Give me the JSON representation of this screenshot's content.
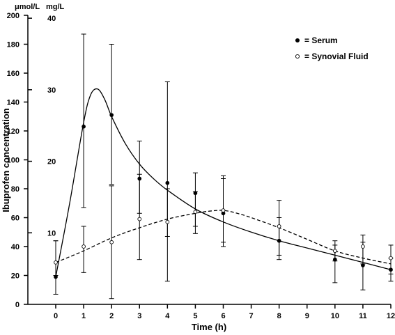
{
  "chart_data": {
    "type": "line",
    "xlabel": "Time (h)",
    "ylabel": "Ibuprofen concentration",
    "y_unit_left": "μmol/L",
    "y_unit_right": "mg/L",
    "x_ticks": [
      0,
      1,
      2,
      3,
      4,
      5,
      6,
      7,
      8,
      9,
      10,
      11,
      12
    ],
    "xlim": [
      0,
      12
    ],
    "ylim": [
      0,
      200
    ],
    "y_ticks_umol": [
      0,
      20,
      40,
      60,
      80,
      100,
      120,
      140,
      160,
      180,
      200
    ],
    "y_ticks_mgL": [
      10,
      20,
      30,
      40
    ],
    "mgL_to_umol_factor": 4.95,
    "grid": false,
    "legend_position": "top-right",
    "series": [
      {
        "name": "= Serum",
        "marker": "filled-circle",
        "line": "solid",
        "points": [
          {
            "x": 0,
            "y": 19,
            "err_low": 7,
            "err_high": 44
          },
          {
            "x": 1,
            "y": 123,
            "err_low": 67,
            "err_high": 187
          },
          {
            "x": 2,
            "y": 131,
            "err_low": 83,
            "err_high": 180
          },
          {
            "x": 3,
            "y": 87,
            "err_low": 63,
            "err_high": 113
          },
          {
            "x": 4,
            "y": 84,
            "err_low": 47,
            "err_high": 154
          },
          {
            "x": 5,
            "y": 77,
            "err_low": 49,
            "err_high": 91
          },
          {
            "x": 6,
            "y": 63,
            "err_low": 40,
            "err_high": 89
          },
          {
            "x": 8,
            "y": 44,
            "err_low": 31,
            "err_high": 60
          },
          {
            "x": 10,
            "y": 31,
            "err_low": 15,
            "err_high": 41
          },
          {
            "x": 11,
            "y": 27,
            "err_low": 10,
            "err_high": 43
          },
          {
            "x": 12,
            "y": 24,
            "err_low": 16,
            "err_high": 32
          }
        ],
        "curve": [
          [
            0,
            19
          ],
          [
            0.5,
            70
          ],
          [
            1,
            126
          ],
          [
            1.25,
            145
          ],
          [
            1.5,
            149
          ],
          [
            1.75,
            142
          ],
          [
            2,
            130
          ],
          [
            2.5,
            111
          ],
          [
            3,
            97
          ],
          [
            3.5,
            87
          ],
          [
            4,
            79
          ],
          [
            5,
            66
          ],
          [
            6,
            57
          ],
          [
            7,
            50
          ],
          [
            8,
            44
          ],
          [
            9,
            39
          ],
          [
            10,
            34
          ],
          [
            11,
            29
          ],
          [
            12,
            24
          ]
        ]
      },
      {
        "name": "= Synovial Fluid",
        "marker": "open-circle",
        "line": "dashed",
        "points": [
          {
            "x": 0,
            "y": 29,
            "err_low": 20,
            "err_high": 44
          },
          {
            "x": 1,
            "y": 40,
            "err_low": 22,
            "err_high": 54
          },
          {
            "x": 2,
            "y": 43,
            "err_low": 4,
            "err_high": 82
          },
          {
            "x": 3,
            "y": 59,
            "err_low": 31,
            "err_high": 90
          },
          {
            "x": 4,
            "y": 57,
            "err_low": 16,
            "err_high": 80
          },
          {
            "x": 5,
            "y": 64,
            "err_low": 54,
            "err_high": 78
          },
          {
            "x": 6,
            "y": 65,
            "err_low": 43,
            "err_high": 87
          },
          {
            "x": 8,
            "y": 54,
            "err_low": 34,
            "err_high": 72
          },
          {
            "x": 10,
            "y": 37,
            "err_low": 30,
            "err_high": 44
          },
          {
            "x": 11,
            "y": 40,
            "err_low": 28,
            "err_high": 48
          },
          {
            "x": 12,
            "y": 32,
            "err_low": 21,
            "err_high": 41
          }
        ],
        "curve": [
          [
            0,
            29
          ],
          [
            1,
            37
          ],
          [
            2,
            46
          ],
          [
            3,
            53
          ],
          [
            4,
            59
          ],
          [
            5,
            63
          ],
          [
            5.5,
            64.5
          ],
          [
            6,
            65
          ],
          [
            6.5,
            63
          ],
          [
            7,
            60
          ],
          [
            8,
            53
          ],
          [
            9,
            45
          ],
          [
            10,
            37
          ],
          [
            11,
            32
          ],
          [
            12,
            28
          ]
        ]
      }
    ]
  }
}
